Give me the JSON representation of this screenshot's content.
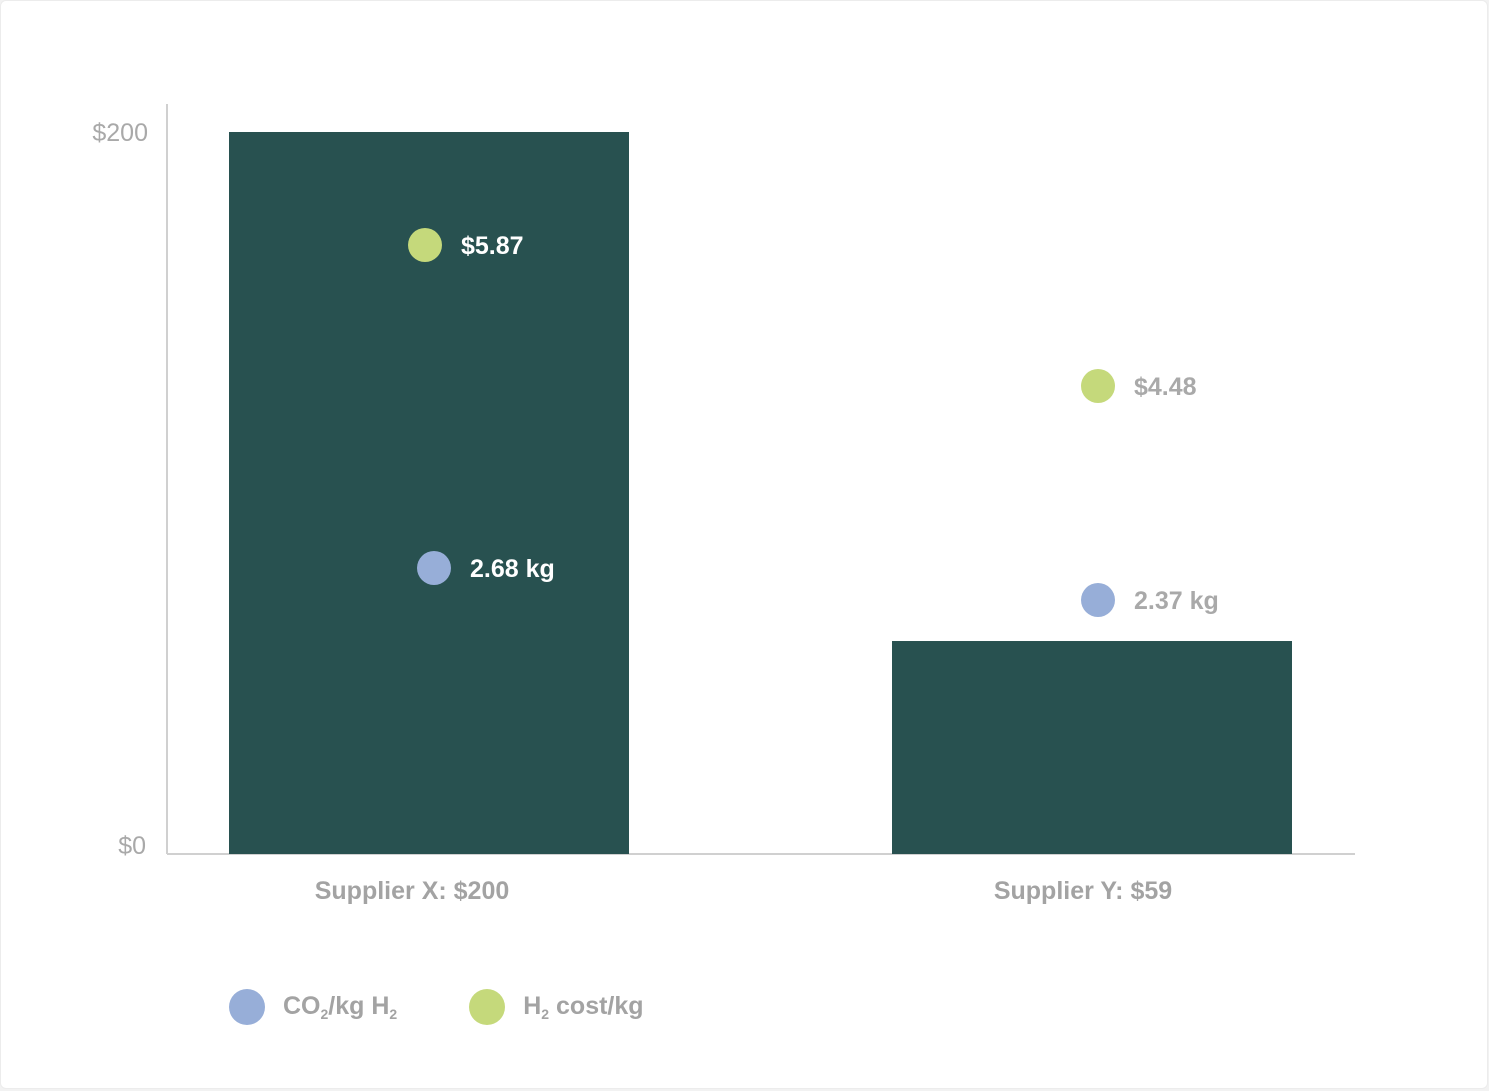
{
  "chart_data": {
    "type": "bar",
    "title": "",
    "xlabel": "",
    "ylabel": "",
    "ylim": [
      0,
      200
    ],
    "y_ticks": [
      "$0",
      "$200"
    ],
    "categories": [
      "Supplier X: $200",
      "Supplier Y: $59"
    ],
    "values": [
      200,
      59
    ],
    "bar_color": "#285150",
    "series": [
      {
        "name": "CO2/kg H2",
        "values": [
          2.68,
          2.37
        ],
        "labels": [
          "2.68 kg",
          "2.37 kg"
        ],
        "color": "#97aed8"
      },
      {
        "name": "H2 cost/kg",
        "values": [
          5.87,
          4.48
        ],
        "labels": [
          "$5.87",
          "$4.48"
        ],
        "color": "#c5d97b"
      }
    ],
    "legend_position": "bottom-left",
    "grid": false
  },
  "legend": {
    "co2": {
      "main": "CO",
      "sub1": "2",
      "mid": "/kg H",
      "sub2": "2"
    },
    "h2": {
      "main": "H",
      "sub1": "2",
      "rest": " cost/kg"
    }
  }
}
